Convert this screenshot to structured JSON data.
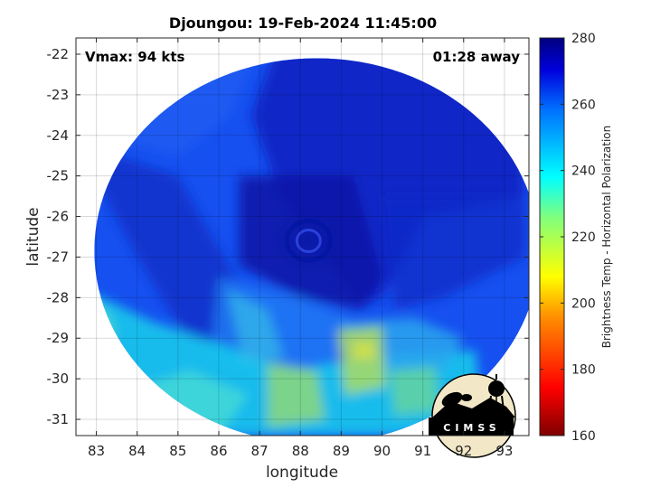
{
  "chart_data": {
    "type": "heatmap",
    "title": "Djoungou: 19-Feb-2024 11:45:00",
    "xlabel": "longitude",
    "ylabel": "latitude",
    "xlim": [
      82.5,
      93.6
    ],
    "ylim": [
      -31.4,
      -21.6
    ],
    "xticks": [
      83,
      84,
      85,
      86,
      87,
      88,
      89,
      90,
      91,
      92,
      93
    ],
    "yticks": [
      -22,
      -23,
      -24,
      -25,
      -26,
      -27,
      -28,
      -29,
      -30,
      -31
    ],
    "grid": true,
    "colorbar": {
      "label": "Brightness Temp - Horizontal Polarization",
      "range": [
        160,
        280
      ],
      "ticks": [
        160,
        180,
        200,
        220,
        240,
        260,
        280
      ],
      "colormap": "jet"
    },
    "annotations": {
      "vmax": "Vmax: 94 kts",
      "time_away": "01:28 away"
    },
    "swath": {
      "center": [
        88.4,
        -26.85
      ],
      "radius_lon": 5.45,
      "radius_lat": 4.75
    },
    "storm_center": [
      88.2,
      -26.6
    ],
    "logo_text": "CIMSS"
  }
}
